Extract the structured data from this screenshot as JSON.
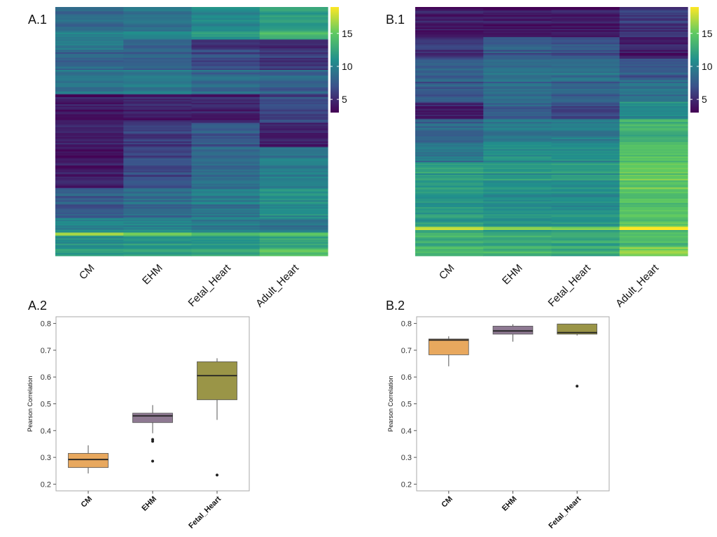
{
  "colors": {
    "viridis": [
      "#440154",
      "#3b528b",
      "#21908c",
      "#5ec962",
      "#fde725"
    ],
    "box_fill": [
      "#e8a85e",
      "#8e7992",
      "#9a9547"
    ],
    "median_line": "#222222",
    "panel_border": "#aaaaaa"
  },
  "colorbar": {
    "min": 3,
    "max": 19,
    "ticks": [
      5,
      10,
      15
    ]
  },
  "chart_data": [
    {
      "id": "A.1",
      "type": "heatmap",
      "panel_label": "A.1",
      "columns": [
        "CM",
        "EHM",
        "Fetal_Heart",
        "Adult_Heart"
      ],
      "colorbar_ticks": [
        5,
        10,
        15
      ],
      "value_range": [
        3,
        19
      ],
      "row_blocks": [
        {
          "weight": 12,
          "values": [
            8.5,
            9.0,
            10.5,
            12.0
          ]
        },
        {
          "weight": 4,
          "values": [
            10.0,
            10.5,
            11.5,
            13.5
          ]
        },
        {
          "weight": 5,
          "values": [
            9.5,
            8.0,
            5.5,
            5.0
          ]
        },
        {
          "weight": 10,
          "values": [
            8.0,
            8.0,
            6.5,
            5.5
          ]
        },
        {
          "weight": 12,
          "values": [
            9.0,
            9.5,
            8.5,
            8.0
          ]
        },
        {
          "weight": 14,
          "values": [
            4.0,
            4.5,
            4.5,
            6.5
          ]
        },
        {
          "weight": 12,
          "values": [
            4.5,
            6.0,
            7.5,
            4.5
          ]
        },
        {
          "weight": 20,
          "values": [
            4.0,
            6.5,
            8.5,
            9.5
          ]
        },
        {
          "weight": 15,
          "values": [
            7.5,
            8.5,
            9.5,
            11.0
          ]
        },
        {
          "weight": 7,
          "values": [
            10.5,
            10.5,
            10.0,
            9.5
          ]
        },
        {
          "weight": 1.5,
          "values": [
            16.0,
            15.0,
            13.5,
            14.0
          ]
        },
        {
          "weight": 6,
          "values": [
            11.0,
            11.5,
            11.5,
            12.5
          ]
        },
        {
          "weight": 4,
          "values": [
            12.0,
            12.0,
            12.5,
            14.5
          ]
        }
      ]
    },
    {
      "id": "B.1",
      "type": "heatmap",
      "panel_label": "B.1",
      "columns": [
        "CM",
        "EHM",
        "Fetal_Heart",
        "Adult_Heart"
      ],
      "colorbar_ticks": [
        5,
        10,
        15
      ],
      "value_range": [
        3,
        19
      ],
      "row_blocks": [
        {
          "weight": 14,
          "values": [
            4.0,
            4.0,
            4.0,
            5.5
          ]
        },
        {
          "weight": 10,
          "values": [
            5.5,
            7.5,
            7.0,
            4.5
          ]
        },
        {
          "weight": 10,
          "values": [
            8.0,
            9.0,
            9.0,
            7.5
          ]
        },
        {
          "weight": 10,
          "values": [
            7.5,
            8.5,
            8.0,
            9.0
          ]
        },
        {
          "weight": 8,
          "values": [
            5.0,
            8.0,
            7.0,
            11.0
          ]
        },
        {
          "weight": 10,
          "values": [
            8.0,
            9.0,
            9.5,
            13.0
          ]
        },
        {
          "weight": 10,
          "values": [
            9.0,
            10.5,
            10.5,
            14.0
          ]
        },
        {
          "weight": 15,
          "values": [
            12.0,
            11.5,
            11.5,
            15.0
          ]
        },
        {
          "weight": 15,
          "values": [
            11.5,
            11.0,
            11.0,
            14.5
          ]
        },
        {
          "weight": 1.5,
          "values": [
            17.0,
            16.0,
            15.5,
            18.5
          ]
        },
        {
          "weight": 8,
          "values": [
            13.0,
            12.5,
            12.5,
            14.0
          ]
        },
        {
          "weight": 4,
          "values": [
            14.0,
            13.5,
            13.0,
            16.5
          ]
        }
      ]
    },
    {
      "id": "A.2",
      "type": "box",
      "panel_label": "A.2",
      "ylabel": "Pearson Correlation",
      "ylim": [
        0.175,
        0.825
      ],
      "yticks": [
        "0.2",
        "0.3",
        "0.4",
        "0.5",
        "0.6",
        "0.7",
        "0.8"
      ],
      "categories": [
        "CM",
        "EHM",
        "Fetal_Heart"
      ],
      "boxes": [
        {
          "whisker_low": 0.24,
          "q1": 0.262,
          "median": 0.292,
          "q3": 0.315,
          "whisker_high": 0.345,
          "outliers": []
        },
        {
          "whisker_low": 0.39,
          "q1": 0.43,
          "median": 0.455,
          "q3": 0.465,
          "whisker_high": 0.495,
          "outliers": [
            0.286,
            0.36,
            0.367
          ]
        },
        {
          "whisker_low": 0.44,
          "q1": 0.515,
          "median": 0.605,
          "q3": 0.657,
          "whisker_high": 0.67,
          "outliers": [
            0.234
          ]
        }
      ]
    },
    {
      "id": "B.2",
      "type": "box",
      "panel_label": "B.2",
      "ylabel": "Pearson Correlation",
      "ylim": [
        0.175,
        0.825
      ],
      "yticks": [
        "0.2",
        "0.3",
        "0.4",
        "0.5",
        "0.6",
        "0.7",
        "0.8"
      ],
      "categories": [
        "CM",
        "EHM",
        "Fetal_Heart"
      ],
      "boxes": [
        {
          "whisker_low": 0.64,
          "q1": 0.683,
          "median": 0.738,
          "q3": 0.742,
          "whisker_high": 0.752,
          "outliers": []
        },
        {
          "whisker_low": 0.732,
          "q1": 0.76,
          "median": 0.772,
          "q3": 0.79,
          "whisker_high": 0.797,
          "outliers": []
        },
        {
          "whisker_low": 0.755,
          "q1": 0.76,
          "median": 0.766,
          "q3": 0.798,
          "whisker_high": 0.798,
          "outliers": [
            0.566
          ]
        }
      ]
    }
  ]
}
